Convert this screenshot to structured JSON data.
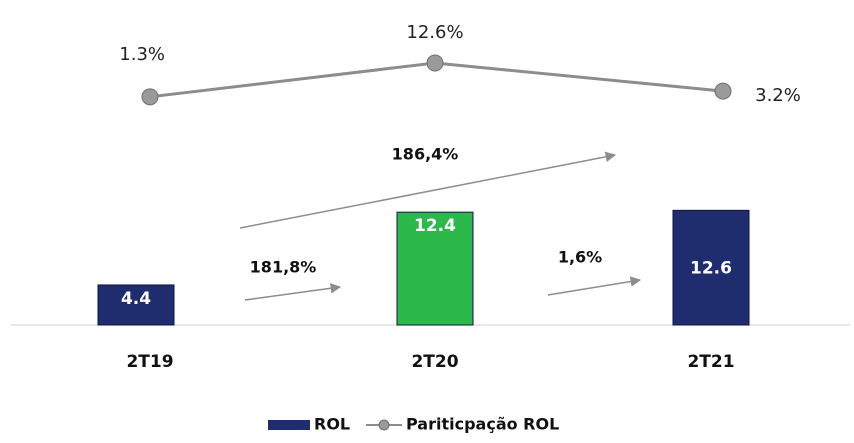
{
  "chart_data": {
    "type": "bar-line",
    "categories": [
      "2T19",
      "2T20",
      "2T21"
    ],
    "series": [
      {
        "name": "ROL",
        "type": "bar",
        "color": "#1f2d6e",
        "colors": [
          "#1f2d6e",
          "#2db84b",
          "#1f2d6e"
        ],
        "values": [
          4.4,
          12.4,
          12.6
        ]
      },
      {
        "name": "Pariticpação ROL",
        "type": "line",
        "axis": "y2",
        "color": "#8c8c8c",
        "values": [
          1.3,
          12.6,
          3.2
        ],
        "value_labels": [
          "1.3%",
          "12.6%",
          "3.2%"
        ]
      }
    ],
    "annotations": [
      "181,8%",
      "1,6%",
      "186,4%"
    ],
    "ylim": [
      0,
      35
    ],
    "y2lim": [
      -75,
      31.5
    ]
  }
}
